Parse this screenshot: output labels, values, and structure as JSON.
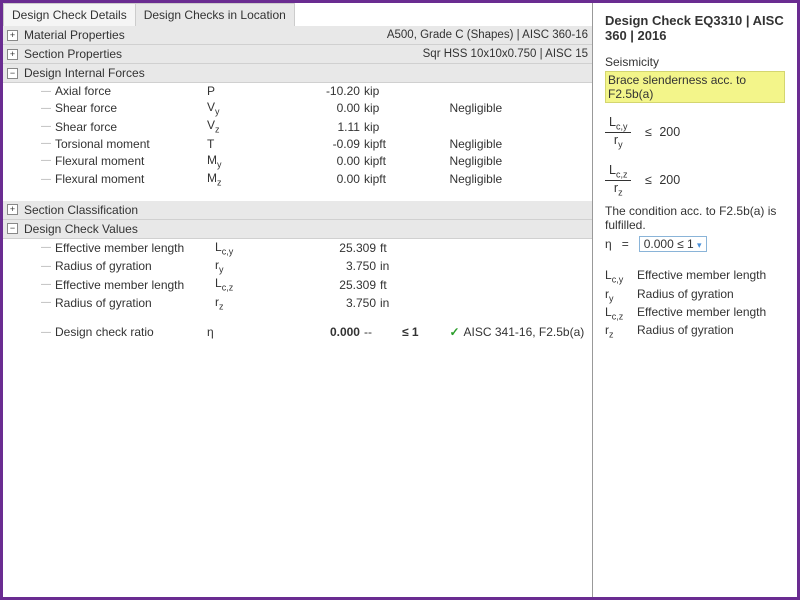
{
  "colors": {
    "frame": "#6a2c91",
    "sectionBg": "#e8e8e8",
    "highlight": "#f3f58a",
    "check": "#2a9d2a"
  },
  "tabs": {
    "a": "Design Check Details",
    "b": "Design Checks in Location"
  },
  "sections": {
    "material": {
      "title": "Material Properties",
      "meta": "A500, Grade C (Shapes) | AISC 360-16",
      "expanded": false
    },
    "section": {
      "title": "Section Properties",
      "meta": "Sqr HSS 10x10x0.750 | AISC 15",
      "expanded": false
    },
    "forces": {
      "title": "Design Internal Forces",
      "expanded": true,
      "rows": [
        {
          "label": "Axial force",
          "sym": "P",
          "val": "-10.20",
          "unit": "kip",
          "note": ""
        },
        {
          "label": "Shear force",
          "sym": "Vy",
          "val": "0.00",
          "unit": "kip",
          "note": "Negligible"
        },
        {
          "label": "Shear force",
          "sym": "Vz",
          "val": "1.11",
          "unit": "kip",
          "note": ""
        },
        {
          "label": "Torsional moment",
          "sym": "T",
          "val": "-0.09",
          "unit": "kipft",
          "note": "Negligible"
        },
        {
          "label": "Flexural moment",
          "sym": "My",
          "val": "0.00",
          "unit": "kipft",
          "note": "Negligible"
        },
        {
          "label": "Flexural moment",
          "sym": "Mz",
          "val": "0.00",
          "unit": "kipft",
          "note": "Negligible"
        }
      ]
    },
    "classification": {
      "title": "Section Classification",
      "expanded": false
    },
    "values": {
      "title": "Design Check Values",
      "expanded": true,
      "rows": [
        {
          "label": "Effective member length",
          "sym": "Lc,y",
          "val": "25.309",
          "unit": "ft"
        },
        {
          "label": "Radius of gyration",
          "sym": "ry",
          "val": "3.750",
          "unit": "in"
        },
        {
          "label": "Effective member length",
          "sym": "Lc,z",
          "val": "25.309",
          "unit": "ft"
        },
        {
          "label": "Radius of gyration",
          "sym": "rz",
          "val": "3.750",
          "unit": "in"
        }
      ],
      "ratio": {
        "label": "Design check ratio",
        "sym": "η",
        "val": "0.000",
        "unit": "--",
        "lim": "≤ 1",
        "ref": "AISC 341-16, F2.5b(a)"
      }
    }
  },
  "right": {
    "title": "Design Check EQ3310 | AISC 360 | 2016",
    "category": "Seismicity",
    "hl": "Brace slenderness acc. to F2.5b(a)",
    "f1": {
      "num": "Lc,y",
      "den": "ry",
      "lim": "200"
    },
    "f2": {
      "num": "Lc,z",
      "den": "rz",
      "lim": "200"
    },
    "cond": "The condition acc. to F2.5b(a) is fulfilled.",
    "eta": {
      "sym": "η",
      "eq": "=",
      "val": "0.000",
      "lim": "≤ 1"
    },
    "legend": [
      {
        "s": "Lc,y",
        "d": "Effective member length"
      },
      {
        "s": "ry",
        "d": "Radius of gyration"
      },
      {
        "s": "Lc,z",
        "d": "Effective member length"
      },
      {
        "s": "rz",
        "d": "Radius of gyration"
      }
    ]
  }
}
